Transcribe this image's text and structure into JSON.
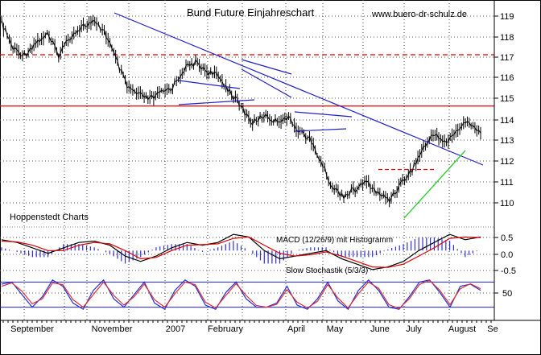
{
  "chart_data": {
    "type": "line",
    "title": "Bund Future Einjahreschart",
    "watermark": "www.buero-dr-schulz.de",
    "source_label": "Hoppenstedt Charts",
    "x_labels": [
      "September",
      "November",
      "2007",
      "February",
      "April",
      "May",
      "June",
      "July",
      "August",
      "Se"
    ],
    "price_panel": {
      "y_ticks": [
        "119",
        "118",
        "117",
        "116",
        "115",
        "114",
        "113",
        "112",
        "111",
        "110"
      ],
      "ylim": [
        109.6,
        119.6
      ],
      "support_level": 114.65,
      "resistance_level": 117.2,
      "local_level": 111.5,
      "trendline_start": {
        "x": "September",
        "y": 118.9
      },
      "trendline_end": {
        "x": "August",
        "y": 112.9
      },
      "series": [
        {
          "x": "September",
          "y": 118.8
        },
        {
          "x": "September",
          "y": 117.5
        },
        {
          "x": "September",
          "y": 117.2
        },
        {
          "x": "September",
          "y": 117.8
        },
        {
          "x": "November",
          "y": 118.2
        },
        {
          "x": "November",
          "y": 117.2
        },
        {
          "x": "November",
          "y": 118.1
        },
        {
          "x": "November",
          "y": 118.6
        },
        {
          "x": "November",
          "y": 118.8
        },
        {
          "x": "November",
          "y": 118.4
        },
        {
          "x": "November",
          "y": 117.0
        },
        {
          "x": "2007",
          "y": 115.6
        },
        {
          "x": "2007",
          "y": 115.2
        },
        {
          "x": "2007",
          "y": 115.0
        },
        {
          "x": "2007",
          "y": 115.3
        },
        {
          "x": "February",
          "y": 115.6
        },
        {
          "x": "February",
          "y": 116.5
        },
        {
          "x": "February",
          "y": 116.8
        },
        {
          "x": "February",
          "y": 116.4
        },
        {
          "x": "February",
          "y": 116.1
        },
        {
          "x": "April",
          "y": 115.4
        },
        {
          "x": "April",
          "y": 114.6
        },
        {
          "x": "April",
          "y": 113.8
        },
        {
          "x": "April",
          "y": 114.2
        },
        {
          "x": "May",
          "y": 113.9
        },
        {
          "x": "May",
          "y": 114.1
        },
        {
          "x": "May",
          "y": 113.5
        },
        {
          "x": "May",
          "y": 113.0
        },
        {
          "x": "June",
          "y": 111.9
        },
        {
          "x": "June",
          "y": 110.6
        },
        {
          "x": "June",
          "y": 110.2
        },
        {
          "x": "June",
          "y": 110.5
        },
        {
          "x": "June",
          "y": 110.9
        },
        {
          "x": "July",
          "y": 110.3
        },
        {
          "x": "July",
          "y": 110.0
        },
        {
          "x": "July",
          "y": 110.8
        },
        {
          "x": "July",
          "y": 111.5
        },
        {
          "x": "August",
          "y": 112.6
        },
        {
          "x": "August",
          "y": 113.3
        },
        {
          "x": "August",
          "y": 112.8
        },
        {
          "x": "August",
          "y": 113.5
        },
        {
          "x": "August",
          "y": 113.9
        },
        {
          "x": "August",
          "y": 113.3
        }
      ]
    },
    "macd_panel": {
      "label": "MACD (12/26/9) mit Histogramm",
      "y_ticks": [
        "0.5",
        "0.0",
        "-0.5"
      ],
      "ylim": [
        -0.85,
        0.75
      ],
      "macd": [
        0.4,
        0.3,
        0.1,
        -0.1,
        0.1,
        0.3,
        0.35,
        0.2,
        -0.2,
        -0.4,
        -0.2,
        0.1,
        0.3,
        0.2,
        0.3,
        0.6,
        0.5,
        0.0,
        -0.3,
        -0.2,
        -0.1,
        0.0,
        -0.3,
        -0.5,
        -0.7,
        -0.6,
        -0.4,
        0.0,
        0.3,
        0.6,
        0.4,
        0.5
      ],
      "signal": [
        0.35,
        0.32,
        0.2,
        0.0,
        0.0,
        0.2,
        0.3,
        0.25,
        0.0,
        -0.3,
        -0.25,
        0.0,
        0.2,
        0.22,
        0.25,
        0.45,
        0.5,
        0.2,
        -0.1,
        -0.2,
        -0.15,
        -0.05,
        -0.2,
        -0.4,
        -0.6,
        -0.62,
        -0.5,
        -0.2,
        0.1,
        0.45,
        0.5,
        0.48
      ]
    },
    "stochastic_panel": {
      "label": "Slow Stochastik (5/3/3)",
      "y_ticks": [
        "50"
      ],
      "ylim": [
        0,
        100
      ],
      "upper_band": 80,
      "lower_band": 20,
      "k": [
        75,
        80,
        50,
        20,
        45,
        85,
        70,
        30,
        15,
        60,
        85,
        40,
        20,
        50,
        80,
        30,
        15,
        60,
        85,
        70,
        25,
        15,
        55,
        80,
        40,
        20,
        20,
        30,
        70,
        25,
        15,
        40,
        80,
        35,
        15,
        60,
        85,
        60,
        20,
        15,
        45,
        80,
        85,
        55,
        20,
        70,
        75,
        60
      ],
      "d": [
        70,
        78,
        58,
        28,
        40,
        78,
        74,
        38,
        20,
        50,
        80,
        48,
        25,
        45,
        75,
        38,
        20,
        52,
        80,
        74,
        32,
        18,
        48,
        76,
        48,
        24,
        20,
        27,
        62,
        32,
        18,
        34,
        74,
        42,
        18,
        52,
        80,
        65,
        26,
        17,
        40,
        74,
        84,
        60,
        26,
        64,
        76,
        64
      ]
    },
    "colors": {
      "price": "#000000",
      "trendline": "#2020c8",
      "support": "#e00000",
      "resistance": "#e00000",
      "green_trend": "#33cc33",
      "macd_line": "#000000",
      "signal_line": "#e00000",
      "histogram": "#3030d0",
      "stoch_k": "#2030e0",
      "stoch_d": "#e03030"
    }
  }
}
